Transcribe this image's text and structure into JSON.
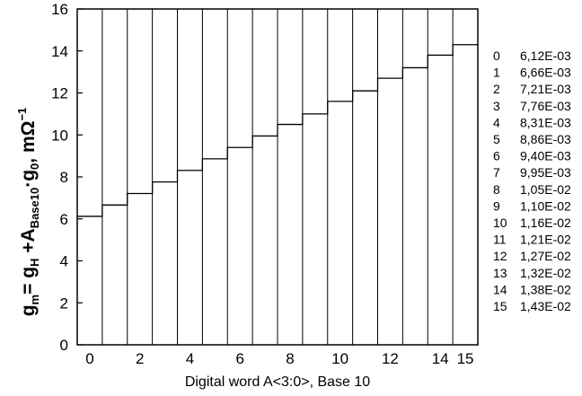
{
  "chart_data": {
    "type": "line",
    "step": true,
    "x": [
      0,
      1,
      2,
      3,
      4,
      5,
      6,
      7,
      8,
      9,
      10,
      11,
      12,
      13,
      14,
      15
    ],
    "values": [
      6.12,
      6.66,
      7.21,
      7.76,
      8.31,
      8.86,
      9.4,
      9.95,
      10.5,
      11.0,
      11.6,
      12.1,
      12.7,
      13.2,
      13.8,
      14.3
    ],
    "xlabel": "Digital word A<3:0>, Base 10",
    "ylabel": "g",
    "ylabel_parts": {
      "g1": "g",
      "sub_m": "m",
      "eq": "= g",
      "sub_H": "H",
      "plusA": " +A",
      "sub_base": "Base10",
      "dot_g": "·g",
      "sub_0": "0",
      "unit": ",  mΩ",
      "sup": "−1"
    },
    "xlim": [
      -0.5,
      15.5
    ],
    "ylim": [
      0,
      16
    ],
    "x_tick_labels": [
      {
        "x": 0,
        "label": "0"
      },
      {
        "x": 2,
        "label": "2"
      },
      {
        "x": 4,
        "label": "4"
      },
      {
        "x": 6,
        "label": "6"
      },
      {
        "x": 8,
        "label": "8"
      },
      {
        "x": 10,
        "label": "10"
      },
      {
        "x": 12,
        "label": "12"
      },
      {
        "x": 14,
        "label": "14"
      },
      {
        "x": 15,
        "label": "15"
      }
    ],
    "y_ticks": [
      0,
      2,
      4,
      6,
      8,
      10,
      12,
      14,
      16
    ],
    "y_tick_labels": [
      "0",
      "2",
      "4",
      "6",
      "8",
      "10",
      "12",
      "14",
      "16"
    ],
    "grid": "vertical lines at every code transition",
    "table": [
      {
        "index": "0",
        "value": "6,12E-03"
      },
      {
        "index": "1",
        "value": "6,66E-03"
      },
      {
        "index": "2",
        "value": "7,21E-03"
      },
      {
        "index": "3",
        "value": "7,76E-03"
      },
      {
        "index": "4",
        "value": "8,31E-03"
      },
      {
        "index": "5",
        "value": "8,86E-03"
      },
      {
        "index": "6",
        "value": "9,40E-03"
      },
      {
        "index": "7",
        "value": "9,95E-03"
      },
      {
        "index": "8",
        "value": "1,05E-02"
      },
      {
        "index": "9",
        "value": "1,10E-02"
      },
      {
        "index": "10",
        "value": "1,16E-02"
      },
      {
        "index": "11",
        "value": "1,21E-02"
      },
      {
        "index": "12",
        "value": "1,27E-02"
      },
      {
        "index": "13",
        "value": "1,32E-02"
      },
      {
        "index": "14",
        "value": "1,38E-02"
      },
      {
        "index": "15",
        "value": "1,43E-02"
      }
    ],
    "colors": {
      "line": "#000000",
      "background": "#ffffff"
    }
  }
}
